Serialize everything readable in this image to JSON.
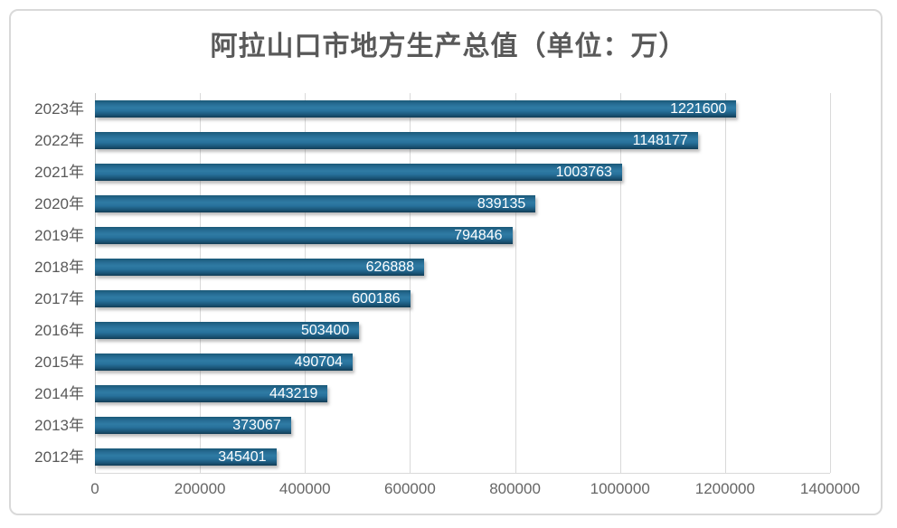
{
  "chart_data": {
    "type": "bar",
    "orientation": "horizontal",
    "title": "阿拉山口市地方生产总值（单位：万）",
    "categories": [
      "2023年",
      "2022年",
      "2021年",
      "2020年",
      "2019年",
      "2018年",
      "2017年",
      "2016年",
      "2015年",
      "2014年",
      "2013年",
      "2012年"
    ],
    "values": [
      1221600,
      1148177,
      1003763,
      839135,
      794846,
      626888,
      600186,
      503400,
      490704,
      443219,
      373067,
      345401
    ],
    "value_labels": [
      "1221600",
      "1148177",
      "1003763",
      "839135",
      "794846",
      "626888",
      "600186",
      "503400",
      "490704",
      "443219",
      "373067",
      "345401"
    ],
    "xlabel": "",
    "ylabel": "",
    "xlim": [
      0,
      1400000
    ],
    "x_ticks": [
      0,
      200000,
      400000,
      600000,
      800000,
      1000000,
      1200000,
      1400000
    ],
    "x_tick_labels": [
      "0",
      "200000",
      "400000",
      "600000",
      "800000",
      "1000000",
      "1200000",
      "1400000"
    ],
    "grid": true,
    "legend": false,
    "value_label_position": "inside-end",
    "colors": {
      "bar": "#21648d",
      "bar_gradient_top": "#1b5878",
      "bar_gradient_mid": "#2f7ba4",
      "bar_gradient_bottom": "#123d55",
      "value_label": "#ffffff",
      "title": "#595959",
      "axis_label": "#666666",
      "category_label": "#595959",
      "gridline": "#d9d9d9",
      "frame_border": "#d9d9d9"
    }
  }
}
